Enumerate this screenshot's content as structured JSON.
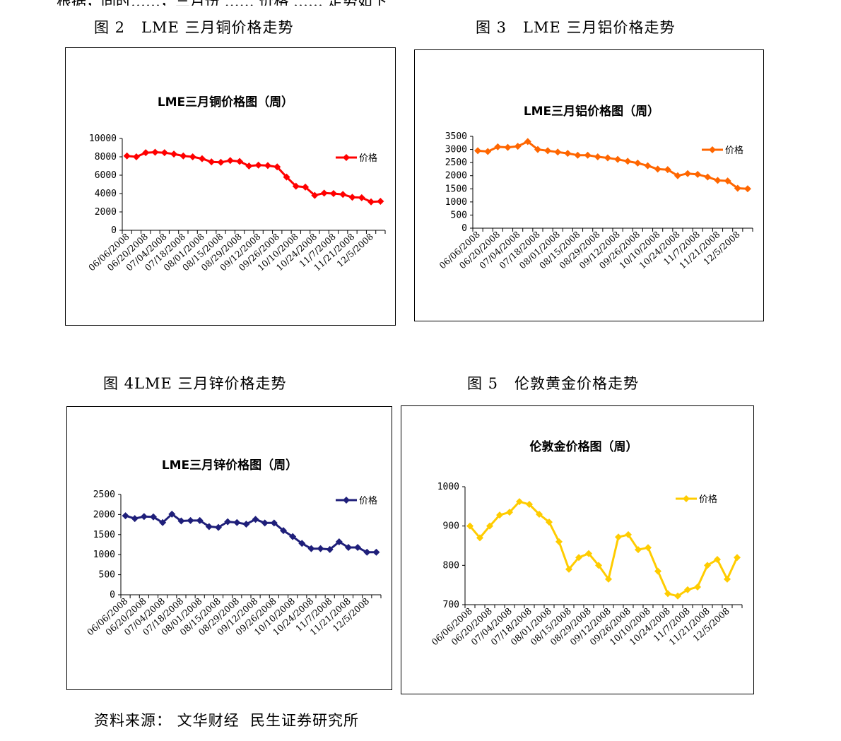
{
  "top_text": "根据，同时……，三月份 …… 价格 …… 走势如下",
  "captions": {
    "fig2": "图 2   LME 三月铜价格走势",
    "fig3": "图 3   LME 三月铝价格走势",
    "fig4": "图 4LME 三月锌价格走势",
    "fig5": "图 5   伦敦黄金价格走势"
  },
  "source": "资料来源： 文华财经  民生证券研究所",
  "chart_data": [
    {
      "id": "copper",
      "type": "line",
      "title": "LME三月铜价格图（周）",
      "color": "#ff0000",
      "legend": "价格",
      "legend_position": "top-right",
      "ylim": [
        0,
        10000
      ],
      "yticks": [
        "0",
        "2000",
        "4000",
        "6000",
        "8000",
        "10000"
      ],
      "xticks": [
        "06/06/2008",
        "06/20/2008",
        "07/04/2008",
        "07/18/2008",
        "08/01/2008",
        "08/15/2008",
        "08/29/2008",
        "09/12/2008",
        "09/26/2008",
        "10/10/2008",
        "10/24/2008",
        "11/7/2008",
        "11/21/2008",
        "12/5/2008"
      ],
      "values": [
        8100,
        8000,
        8450,
        8500,
        8450,
        8300,
        8100,
        8000,
        7800,
        7450,
        7400,
        7600,
        7500,
        7000,
        7100,
        7050,
        6900,
        5800,
        4800,
        4700,
        3800,
        4050,
        4000,
        3900,
        3600,
        3550,
        3100,
        3150
      ]
    },
    {
      "id": "aluminum",
      "type": "line",
      "title": "LME三月铝价格图（周）",
      "color": "#ff6600",
      "legend": "价格",
      "legend_position": "top-right",
      "ylim": [
        0,
        3500
      ],
      "yticks": [
        "0",
        "500",
        "1000",
        "1500",
        "2000",
        "2500",
        "3000",
        "3500"
      ],
      "xticks": [
        "06/06/2008",
        "06/20/2008",
        "07/04/2008",
        "07/18/2008",
        "08/01/2008",
        "08/15/2008",
        "08/29/2008",
        "09/12/2008",
        "09/26/2008",
        "10/10/2008",
        "10/24/2008",
        "11/7/2008",
        "11/21/2008",
        "12/5/2008"
      ],
      "values": [
        2950,
        2920,
        3100,
        3080,
        3120,
        3300,
        3000,
        2950,
        2900,
        2850,
        2780,
        2780,
        2720,
        2680,
        2620,
        2550,
        2480,
        2380,
        2250,
        2230,
        2000,
        2080,
        2050,
        1950,
        1820,
        1800,
        1520,
        1500
      ]
    },
    {
      "id": "zinc",
      "type": "line",
      "title": "LME三月锌价格图（周）",
      "color": "#1f1f7a",
      "legend": "价格",
      "legend_position": "top-right",
      "ylim": [
        0,
        2500
      ],
      "yticks": [
        "0",
        "500",
        "1000",
        "1500",
        "2000",
        "2500"
      ],
      "xticks": [
        "06/06/2008",
        "06/20/2008",
        "07/04/2008",
        "07/18/2008",
        "08/01/2008",
        "08/15/2008",
        "08/29/2008",
        "09/12/2008",
        "09/26/2008",
        "10/10/2008",
        "10/24/2008",
        "11/7/2008",
        "11/21/2008",
        "12/5/2008"
      ],
      "values": [
        1970,
        1900,
        1950,
        1940,
        1800,
        2010,
        1840,
        1850,
        1850,
        1700,
        1680,
        1820,
        1800,
        1760,
        1880,
        1790,
        1790,
        1600,
        1450,
        1280,
        1150,
        1150,
        1130,
        1320,
        1180,
        1180,
        1060,
        1060
      ]
    },
    {
      "id": "gold",
      "type": "line",
      "title": "伦敦金价格图（周）",
      "color": "#ffcc00",
      "legend": "价格",
      "legend_position": "top-right",
      "ylim": [
        700,
        1000
      ],
      "yticks": [
        "700",
        "800",
        "900",
        "1000"
      ],
      "xticks": [
        "06/06/2008",
        "06/20/2008",
        "07/04/2008",
        "07/18/2008",
        "08/01/2008",
        "08/15/2008",
        "08/29/2008",
        "09/12/2008",
        "09/26/2008",
        "10/10/2008",
        "10/24/2008",
        "11/7/2008",
        "11/21/2008",
        "12/5/2008"
      ],
      "values": [
        900,
        870,
        900,
        928,
        935,
        962,
        955,
        930,
        910,
        860,
        790,
        820,
        830,
        800,
        765,
        872,
        878,
        840,
        845,
        785,
        728,
        722,
        738,
        745,
        800,
        815,
        765,
        820
      ]
    }
  ]
}
